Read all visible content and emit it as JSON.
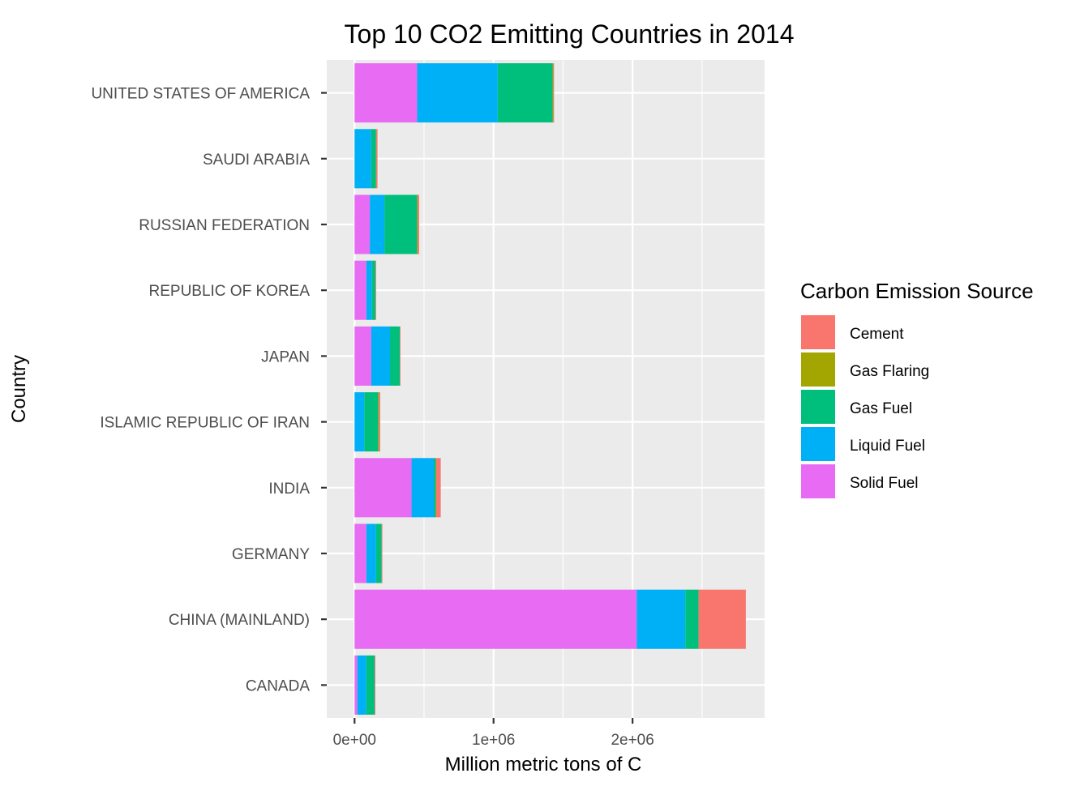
{
  "chart_data": {
    "type": "bar",
    "orientation": "horizontal",
    "stacked": true,
    "title": "Top 10 CO2 Emitting Countries in 2014",
    "xlabel": "Million metric tons of C",
    "ylabel": "Country",
    "xlim": [
      -200000,
      2950000
    ],
    "x_ticks": [
      0,
      1000000,
      2000000
    ],
    "x_tick_labels": [
      "0e+00",
      "1e+06",
      "2e+06"
    ],
    "grid": true,
    "legend_title": "Carbon Emission Source",
    "legend_position": "right",
    "categories": [
      "UNITED STATES OF AMERICA",
      "SAUDI ARABIA",
      "RUSSIAN FEDERATION",
      "REPUBLIC OF KOREA",
      "JAPAN",
      "ISLAMIC REPUBLIC OF IRAN",
      "INDIA",
      "GERMANY",
      "CHINA (MAINLAND)",
      "CANADA"
    ],
    "series": [
      {
        "name": "Solid Fuel",
        "color": "#E76BF3",
        "values": [
          450000,
          0,
          110000,
          85000,
          120000,
          0,
          410000,
          85000,
          2030000,
          20000
        ]
      },
      {
        "name": "Liquid Fuel",
        "color": "#00B0F6",
        "values": [
          580000,
          120000,
          105000,
          40000,
          135000,
          70000,
          160000,
          70000,
          350000,
          65000
        ]
      },
      {
        "name": "Gas Fuel",
        "color": "#00BF7D",
        "values": [
          395000,
          35000,
          235000,
          25000,
          70000,
          100000,
          15000,
          40000,
          95000,
          60000
        ]
      },
      {
        "name": "Gas Flaring",
        "color": "#A3A500",
        "values": [
          5000,
          0,
          5000,
          0,
          0,
          5000,
          0,
          0,
          0,
          0
        ]
      },
      {
        "name": "Cement",
        "color": "#F8766D",
        "values": [
          5000,
          10000,
          10000,
          5000,
          5000,
          10000,
          35000,
          5000,
          340000,
          5000
        ]
      }
    ],
    "legend_order": [
      "Cement",
      "Gas Flaring",
      "Gas Fuel",
      "Liquid Fuel",
      "Solid Fuel"
    ]
  }
}
